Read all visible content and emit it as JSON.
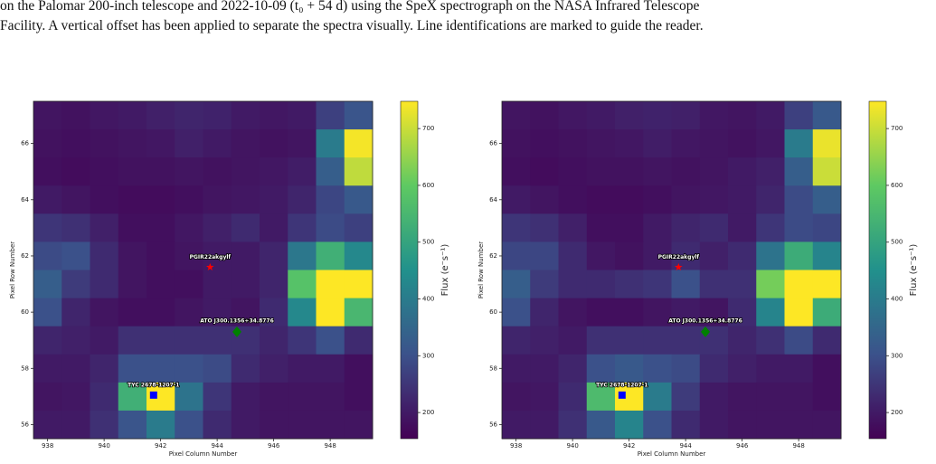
{
  "caption": [
    "on the Palomar 200-inch telescope and 2022-10-09 (t₀ + 54 d) using the SpeX spectrograph on the NASA Infrared Telescope",
    "Facility. A vertical offset has been applied to separate the spectra visually. Line identifications are marked to guide the reader."
  ],
  "chart_data": [
    {
      "type": "heatmap",
      "x_label": "Pixel Column Number",
      "y_label": "Pixel Row Number",
      "colorbar_label": "Flux (e⁻s⁻¹)",
      "colormap": "viridis",
      "x": [
        938,
        939,
        940,
        941,
        942,
        943,
        944,
        945,
        946,
        947,
        948,
        949
      ],
      "y": [
        67,
        66,
        65,
        64,
        63,
        62,
        61,
        60,
        59,
        58,
        57,
        56
      ],
      "values": [
        [
          190,
          185,
          195,
          200,
          210,
          220,
          215,
          200,
          195,
          200,
          270,
          310
        ],
        [
          185,
          180,
          185,
          190,
          195,
          210,
          200,
          190,
          185,
          190,
          400,
          740
        ],
        [
          180,
          175,
          180,
          185,
          185,
          190,
          185,
          190,
          195,
          205,
          330,
          690
        ],
        [
          200,
          190,
          180,
          175,
          175,
          180,
          190,
          195,
          200,
          220,
          280,
          320
        ],
        [
          250,
          240,
          210,
          180,
          180,
          195,
          210,
          230,
          200,
          250,
          290,
          270
        ],
        [
          290,
          300,
          230,
          190,
          180,
          190,
          200,
          200,
          220,
          390,
          530,
          430
        ],
        [
          330,
          260,
          230,
          190,
          180,
          180,
          200,
          200,
          220,
          580,
          750,
          750
        ],
        [
          300,
          220,
          190,
          180,
          180,
          190,
          200,
          190,
          230,
          430,
          750,
          550
        ],
        [
          220,
          210,
          200,
          240,
          240,
          240,
          240,
          240,
          220,
          250,
          300,
          230
        ],
        [
          200,
          200,
          220,
          300,
          300,
          300,
          290,
          230,
          210,
          200,
          200,
          180
        ],
        [
          190,
          195,
          230,
          530,
          750,
          380,
          250,
          200,
          190,
          190,
          190,
          180
        ],
        [
          200,
          200,
          240,
          310,
          400,
          300,
          230,
          200,
          190,
          190,
          190,
          190
        ]
      ],
      "xlim": [
        937.5,
        949.5
      ],
      "ylim": [
        55.5,
        67.5
      ],
      "xticks": [
        938,
        940,
        942,
        944,
        946,
        948
      ],
      "yticks": [
        56,
        58,
        60,
        62,
        64,
        66
      ],
      "clim": [
        154,
        748
      ],
      "cticks": [
        200,
        300,
        400,
        500,
        600,
        700
      ],
      "annotations": [
        {
          "label": "PGIR22akgylf",
          "x": 943.75,
          "y": 61.6,
          "marker": "star",
          "color": "#ff0000"
        },
        {
          "label": "ATO J300.1356+34.8776",
          "x": 944.7,
          "y": 59.3,
          "marker": "diamond",
          "color": "#008000"
        },
        {
          "label": "TYC 2678-1207-1",
          "x": 941.75,
          "y": 57.05,
          "marker": "square",
          "color": "#0000ff"
        }
      ]
    },
    {
      "type": "heatmap",
      "x_label": "Pixel Column Number",
      "y_label": "Pixel Row Number",
      "colorbar_label": "Flux (e⁻s⁻¹)",
      "colormap": "viridis",
      "x": [
        938,
        939,
        940,
        941,
        942,
        943,
        944,
        945,
        946,
        947,
        948,
        949
      ],
      "y": [
        67,
        66,
        65,
        64,
        63,
        62,
        61,
        60,
        59,
        58,
        57,
        56
      ],
      "values": [
        [
          190,
          185,
          195,
          200,
          210,
          215,
          210,
          195,
          190,
          200,
          270,
          320
        ],
        [
          185,
          180,
          185,
          190,
          195,
          205,
          195,
          190,
          185,
          195,
          400,
          730
        ],
        [
          180,
          175,
          180,
          185,
          185,
          190,
          185,
          190,
          200,
          210,
          330,
          700
        ],
        [
          200,
          190,
          180,
          175,
          175,
          180,
          190,
          195,
          200,
          220,
          290,
          330
        ],
        [
          250,
          240,
          210,
          180,
          180,
          200,
          220,
          230,
          200,
          250,
          290,
          280
        ],
        [
          280,
          280,
          230,
          195,
          185,
          200,
          230,
          210,
          230,
          380,
          520,
          420
        ],
        [
          330,
          260,
          230,
          230,
          240,
          250,
          300,
          240,
          240,
          620,
          750,
          750
        ],
        [
          300,
          220,
          190,
          180,
          180,
          190,
          200,
          190,
          230,
          420,
          750,
          520
        ],
        [
          220,
          210,
          200,
          240,
          240,
          240,
          240,
          240,
          220,
          240,
          290,
          230
        ],
        [
          200,
          200,
          220,
          300,
          320,
          300,
          290,
          230,
          210,
          200,
          200,
          180
        ],
        [
          190,
          195,
          230,
          560,
          750,
          400,
          260,
          200,
          190,
          190,
          190,
          180
        ],
        [
          200,
          200,
          240,
          320,
          420,
          300,
          230,
          200,
          190,
          190,
          190,
          190
        ]
      ],
      "xlim": [
        937.5,
        949.5
      ],
      "ylim": [
        55.5,
        67.5
      ],
      "xticks": [
        938,
        940,
        942,
        944,
        946,
        948
      ],
      "yticks": [
        56,
        58,
        60,
        62,
        64,
        66
      ],
      "clim": [
        154,
        748
      ],
      "cticks": [
        200,
        300,
        400,
        500,
        600,
        700
      ],
      "annotations": [
        {
          "label": "PGIR22akgylf",
          "x": 943.75,
          "y": 61.6,
          "marker": "star",
          "color": "#ff0000"
        },
        {
          "label": "ATO J300.1356+34.8776",
          "x": 944.7,
          "y": 59.3,
          "marker": "diamond",
          "color": "#008000"
        },
        {
          "label": "TYC 2678-1207-1",
          "x": 941.75,
          "y": 57.05,
          "marker": "square",
          "color": "#0000ff"
        }
      ]
    }
  ]
}
